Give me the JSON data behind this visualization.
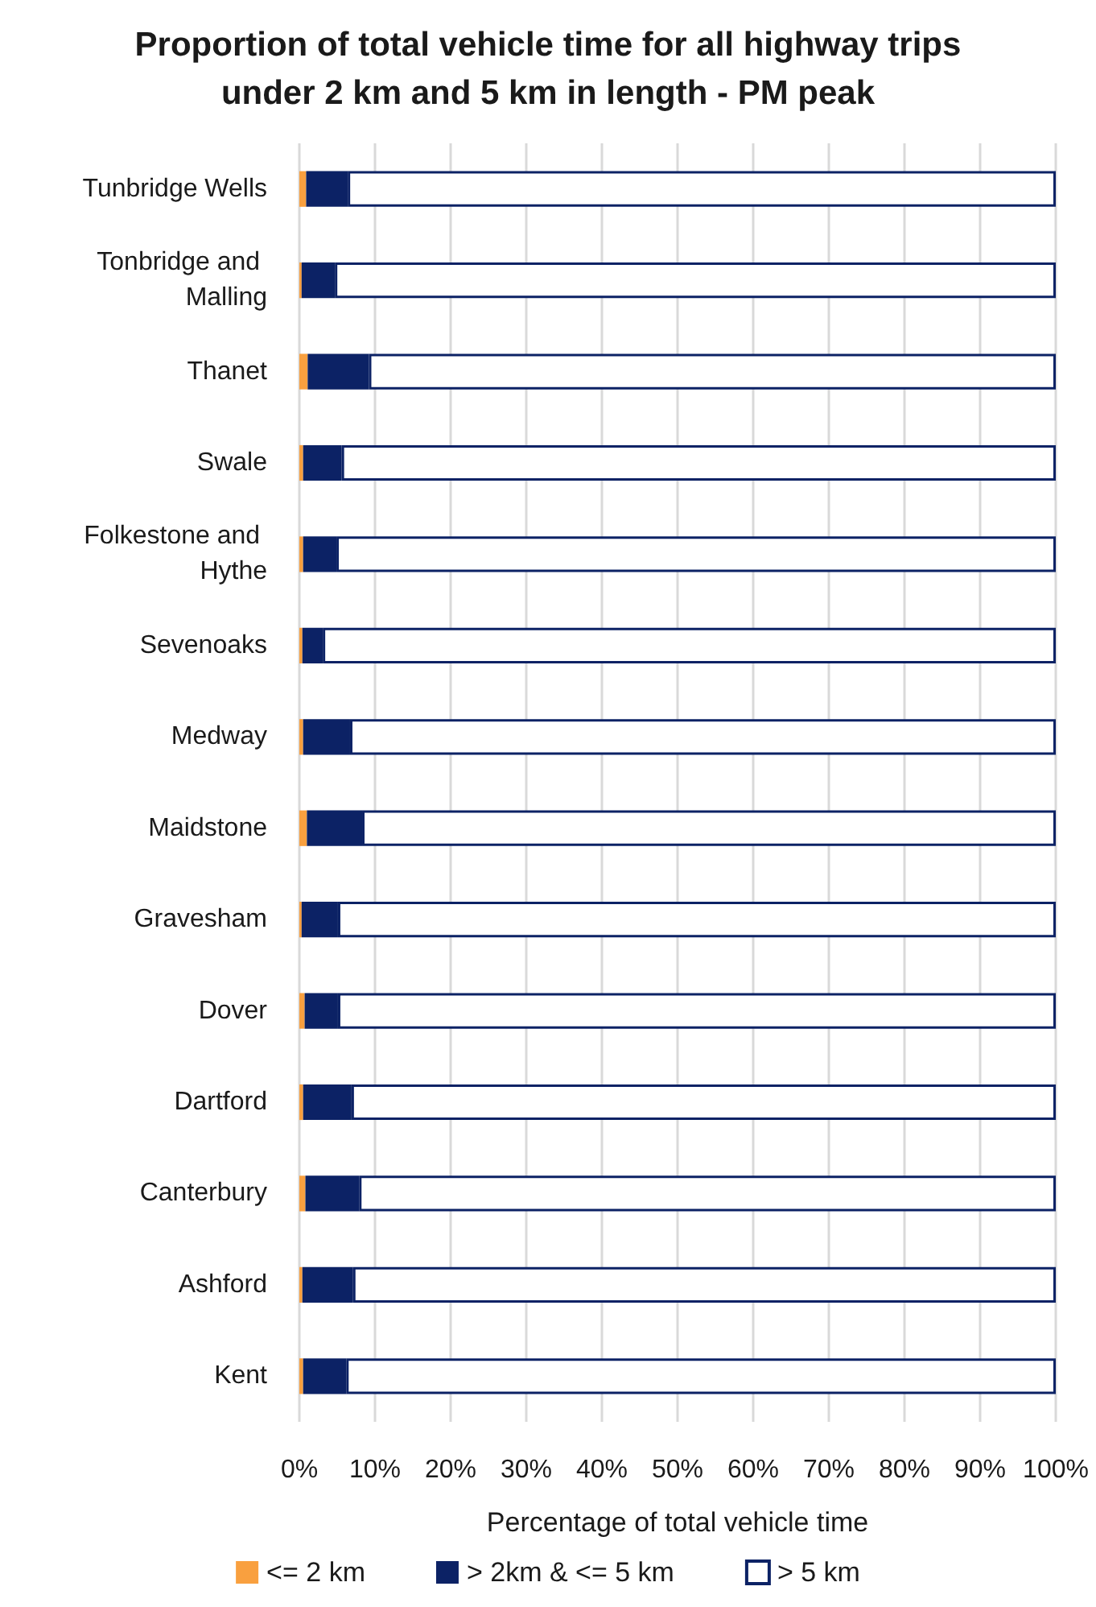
{
  "chart_data": {
    "type": "bar",
    "orientation": "horizontal",
    "stacked": true,
    "title": "Proportion of total vehicle time for all highway trips under 2 km and 5 km in length - PM peak",
    "xlabel": "Percentage of total vehicle time",
    "categories": [
      "Tunbridge Wells",
      "Tonbridge and Malling",
      "Thanet",
      "Swale",
      "Folkestone and Hythe",
      "Sevenoaks",
      "Medway",
      "Maidstone",
      "Gravesham",
      "Dover",
      "Dartford",
      "Canterbury",
      "Ashford",
      "Kent"
    ],
    "series": [
      {
        "name": "<= 2 km",
        "color": "#f9a03f",
        "values": [
          0.9,
          0.3,
          1.1,
          0.5,
          0.5,
          0.4,
          0.5,
          1.0,
          0.3,
          0.7,
          0.5,
          0.8,
          0.4,
          0.5
        ]
      },
      {
        "name": "> 2km & <= 5 km",
        "color": "#0c2265",
        "values": [
          5.5,
          4.4,
          8.1,
          5.1,
          4.4,
          2.7,
          6.2,
          7.3,
          4.8,
          4.4,
          6.4,
          7.1,
          6.7,
          5.7
        ]
      },
      {
        "name": "> 5 km",
        "color": "#ffffff",
        "values": [
          93.6,
          95.3,
          90.8,
          94.4,
          95.1,
          96.9,
          93.3,
          91.7,
          94.9,
          94.9,
          93.1,
          92.1,
          92.9,
          93.8
        ]
      }
    ],
    "xlim": [
      0,
      100
    ],
    "xticks": [
      {
        "value": 0,
        "label": "0%"
      },
      {
        "value": 10,
        "label": "10%"
      },
      {
        "value": 20,
        "label": "20%"
      },
      {
        "value": 30,
        "label": "30%"
      },
      {
        "value": 40,
        "label": "40%"
      },
      {
        "value": 50,
        "label": "50%"
      },
      {
        "value": 60,
        "label": "60%"
      },
      {
        "value": 70,
        "label": "70%"
      },
      {
        "value": 80,
        "label": "80%"
      },
      {
        "value": 90,
        "label": "90%"
      },
      {
        "value": 100,
        "label": "100%"
      }
    ],
    "grid": "x",
    "legend": "bottom"
  }
}
